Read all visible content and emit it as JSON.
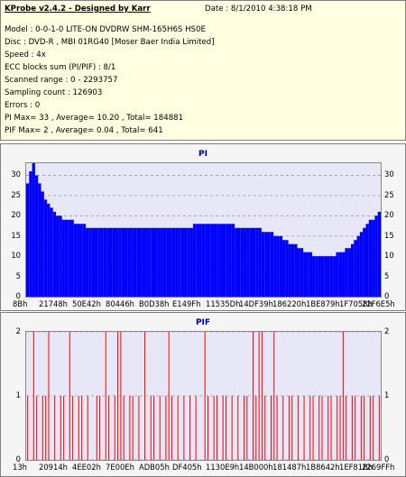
{
  "info": {
    "title": "KProbe v2.4.2 - Designed by Karr",
    "date": "Date : 8/1/2010 4:38:18 PM",
    "lines": [
      "Model : 0-0-1-0 LITE-ON DVDRW SHM-165H6S HS0E",
      "Disc : DVD-R , MBI 01RG40 [Moser Baer India Limited]",
      "Speed : 4x",
      "ECC blocks sum (PI/PIF) : 8/1",
      "Scanned range : 0 - 2293757",
      "Sampling count : 126903",
      "Errors : 0",
      "PI Max= 33 , Average= 10.20 , Total= 184881",
      "PIF Max= 2 , Average= 0.04 , Total= 641"
    ]
  },
  "colors": {
    "background_plot": "#e7e7f7",
    "pi_series": "#0000ff",
    "pif_series": "#ff0000",
    "grid": "#9a9a9a",
    "title": "#0000aa"
  },
  "chart_data": [
    {
      "type": "bar",
      "title": "PI",
      "ylim": [
        0,
        33
      ],
      "yticks": [
        "30",
        "25",
        "20",
        "15",
        "10",
        "5",
        "0"
      ],
      "xticks": [
        "8Bh",
        "21748h",
        "50E42h",
        "80446h",
        "B0D38h",
        "E149Fh",
        "11535Dh",
        "14DF39h",
        "186220h",
        "1BE879h",
        "1F7058h",
        "22F6E5h"
      ],
      "grid": "dashed horizontal",
      "series": [
        {
          "values": [
            28,
            31,
            33,
            30,
            28,
            26,
            24,
            23,
            22,
            21,
            20,
            20,
            19,
            19,
            19,
            19,
            18,
            18,
            18,
            18,
            17,
            17,
            17,
            17,
            17,
            17,
            17,
            17,
            17,
            17,
            17,
            17,
            17,
            17,
            17,
            17,
            17,
            17,
            17,
            17,
            17,
            17,
            17,
            17,
            17,
            17,
            17,
            17,
            17,
            17,
            17,
            17,
            17,
            17,
            17,
            17,
            18,
            18,
            18,
            18,
            18,
            18,
            18,
            18,
            18,
            18,
            18,
            18,
            18,
            18,
            17,
            17,
            17,
            17,
            17,
            17,
            17,
            17,
            17,
            16,
            16,
            16,
            16,
            15,
            15,
            15,
            14,
            14,
            13,
            13,
            13,
            12,
            12,
            11,
            11,
            11,
            10,
            10,
            10,
            10,
            10,
            10,
            10,
            10,
            11,
            11,
            11,
            12,
            12,
            13,
            14,
            15,
            16,
            17,
            18,
            19,
            19,
            20,
            21
          ]
        }
      ]
    },
    {
      "type": "bar",
      "title": "PIF",
      "ylim": [
        0,
        2
      ],
      "yticks": [
        "2",
        "1",
        "0"
      ],
      "xticks": [
        "13h",
        "20914h",
        "4EE02h",
        "7E00Eh",
        "ADB05h",
        "DF405h",
        "1130E9h",
        "14B000h",
        "181487h",
        "1B8642h",
        "1EF81Bh",
        "2269FFh"
      ],
      "grid": "dashed horizontal",
      "series": [
        {
          "values": [
            1,
            0,
            2,
            1,
            0,
            1,
            1,
            2,
            0,
            1,
            0,
            1,
            1,
            0,
            2,
            1,
            0,
            1,
            1,
            0,
            1,
            0,
            0,
            1,
            1,
            0,
            2,
            1,
            0,
            1,
            2,
            2,
            1,
            0,
            1,
            1,
            0,
            1,
            0,
            2,
            0,
            1,
            1,
            0,
            1,
            0,
            1,
            2,
            1,
            0,
            1,
            0,
            1,
            0,
            1,
            0,
            1,
            0,
            0,
            2,
            1,
            0,
            1,
            1,
            0,
            1,
            1,
            0,
            1,
            0,
            1,
            0,
            1,
            1,
            0,
            2,
            1,
            2,
            2,
            1,
            0,
            1,
            2,
            1,
            0,
            1,
            0,
            1,
            1,
            0,
            1,
            0,
            1,
            0,
            1,
            1,
            0,
            1,
            1,
            0,
            1,
            1,
            0,
            1,
            1,
            2,
            1,
            0,
            1,
            1,
            0,
            1,
            1,
            0,
            1,
            1,
            0,
            1
          ]
        }
      ]
    }
  ]
}
